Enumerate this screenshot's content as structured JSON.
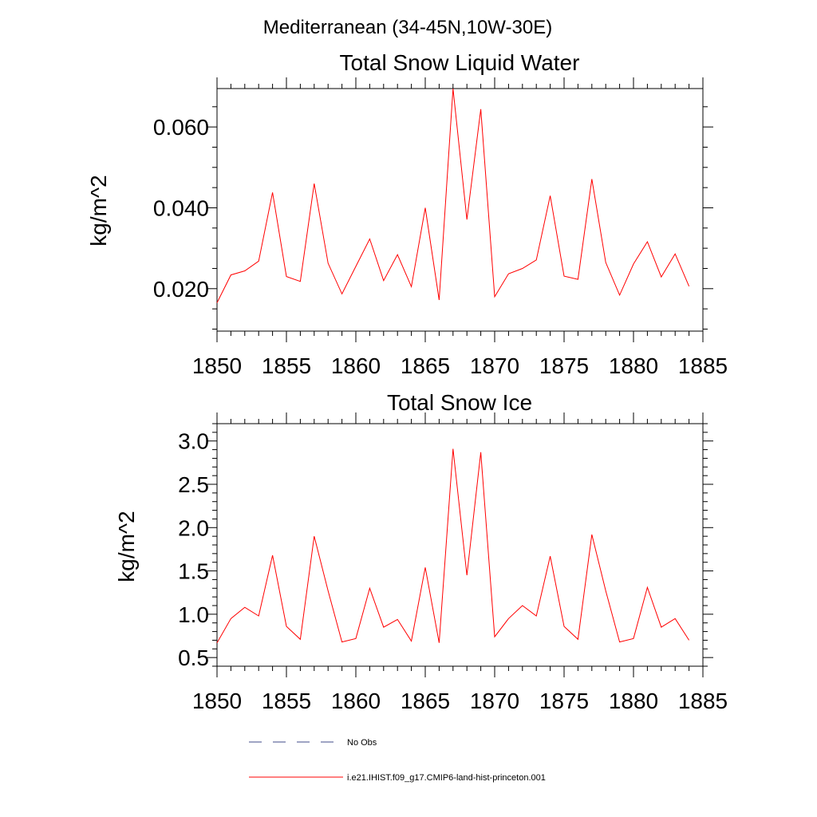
{
  "figure": {
    "main_title": "Mediterranean (34-45N,10W-30E)"
  },
  "chart_data": [
    {
      "type": "line",
      "title": "Total Snow Liquid Water",
      "xlabel": "",
      "ylabel": "kg/m^2",
      "xlim": [
        1850,
        1885
      ],
      "ylim": [
        0.0095,
        0.0695
      ],
      "x_ticks": [
        1850,
        1855,
        1860,
        1865,
        1870,
        1875,
        1880,
        1885
      ],
      "x_tick_labels": [
        "1850",
        "1855",
        "1860",
        "1865",
        "1870",
        "1875",
        "1880",
        "1885"
      ],
      "y_ticks": [
        0.02,
        0.04,
        0.06
      ],
      "y_tick_labels": [
        "0.020",
        "0.040",
        "0.060"
      ],
      "y_minor_step": 0.005,
      "x": [
        1850,
        1851,
        1852,
        1853,
        1854,
        1855,
        1856,
        1857,
        1858,
        1859,
        1860,
        1861,
        1862,
        1863,
        1864,
        1865,
        1866,
        1867,
        1868,
        1869,
        1870,
        1871,
        1872,
        1873,
        1874,
        1875,
        1876,
        1877,
        1878,
        1879,
        1880,
        1881,
        1882,
        1883,
        1884
      ],
      "series": [
        {
          "name": "i.e21.IHIST.f09_g17.CMIP6-land-hist-princeton.001",
          "color": "#ff0000",
          "values": [
            0.0165,
            0.0234,
            0.0244,
            0.0268,
            0.0438,
            0.023,
            0.0218,
            0.046,
            0.0263,
            0.0187,
            0.0255,
            0.0323,
            0.022,
            0.0284,
            0.0205,
            0.04,
            0.0172,
            0.0695,
            0.0371,
            0.0644,
            0.018,
            0.0237,
            0.025,
            0.0271,
            0.043,
            0.0231,
            0.0223,
            0.0471,
            0.0265,
            0.0184,
            0.0261,
            0.0316,
            0.0229,
            0.0286,
            0.0206
          ]
        }
      ]
    },
    {
      "type": "line",
      "title": "Total Snow Ice",
      "xlabel": "",
      "ylabel": "kg/m^2",
      "xlim": [
        1850,
        1885
      ],
      "ylim": [
        0.4,
        3.2
      ],
      "x_ticks": [
        1850,
        1855,
        1860,
        1865,
        1870,
        1875,
        1880,
        1885
      ],
      "x_tick_labels": [
        "1850",
        "1855",
        "1860",
        "1865",
        "1870",
        "1875",
        "1880",
        "1885"
      ],
      "y_ticks": [
        0.5,
        1.0,
        1.5,
        2.0,
        2.5,
        3.0
      ],
      "y_tick_labels": [
        "0.5",
        "1.0",
        "1.5",
        "2.0",
        "2.5",
        "3.0"
      ],
      "y_minor_step": 0.1,
      "x": [
        1850,
        1851,
        1852,
        1853,
        1854,
        1855,
        1856,
        1857,
        1858,
        1859,
        1860,
        1861,
        1862,
        1863,
        1864,
        1865,
        1866,
        1867,
        1868,
        1869,
        1870,
        1871,
        1872,
        1873,
        1874,
        1875,
        1876,
        1877,
        1878,
        1879,
        1880,
        1881,
        1882,
        1883,
        1884
      ],
      "series": [
        {
          "name": "i.e21.IHIST.f09_g17.CMIP6-land-hist-princeton.001",
          "color": "#ff0000",
          "values": [
            0.67,
            0.95,
            1.08,
            0.98,
            1.68,
            0.86,
            0.71,
            1.9,
            1.27,
            0.68,
            0.72,
            1.3,
            0.85,
            0.94,
            0.69,
            1.54,
            0.67,
            2.91,
            1.45,
            2.87,
            0.74,
            0.95,
            1.1,
            0.98,
            1.67,
            0.86,
            0.71,
            1.92,
            1.27,
            0.68,
            0.72,
            1.31,
            0.85,
            0.95,
            0.7
          ]
        }
      ]
    }
  ],
  "legend": {
    "placement": "bottom",
    "items": [
      {
        "label": "No Obs",
        "color": "#3f4a8a",
        "dash": "dashed"
      },
      {
        "label": "i.e21.IHIST.f09_g17.CMIP6-land-hist-princeton.001",
        "color": "#ff0000",
        "dash": "solid"
      }
    ]
  }
}
